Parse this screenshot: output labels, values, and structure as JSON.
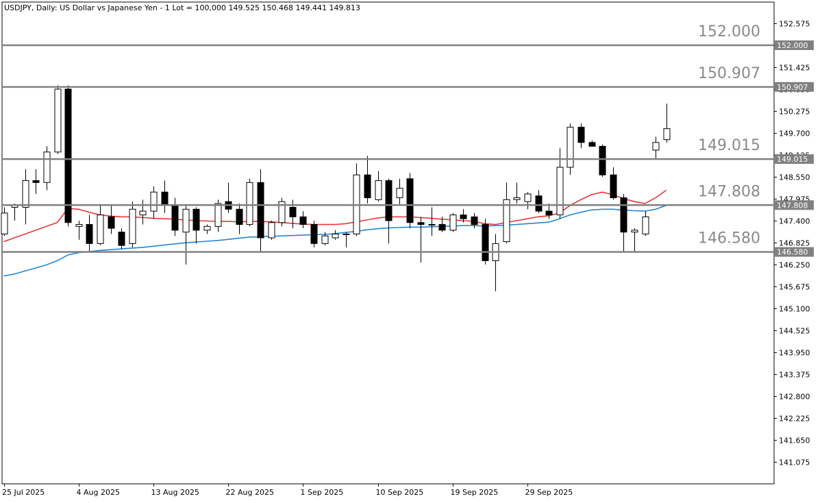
{
  "header": {
    "text": "USDJPY, Daily:  US Dollar vs Japanese Yen - 1 Lot = 100,000  149.525 150.468 149.441 149.813"
  },
  "colors": {
    "background": "#ffffff",
    "axis": "#000000",
    "candle": "#000000",
    "bull_fill": "#ffffff",
    "bear_fill": "#000000",
    "level_line": "#808080",
    "level_text": "#8a8a8a",
    "ma_fast": "#e8363a",
    "ma_slow": "#1e88d6"
  },
  "chart_data": {
    "type": "candlestick",
    "symbol": "USDJPY",
    "timeframe": "Daily",
    "ylim": [
      140.6,
      153.0
    ],
    "y_ticks": [
      "152.575",
      "152.000",
      "151.425",
      "150.850",
      "150.275",
      "149.700",
      "149.125",
      "148.550",
      "147.975",
      "147.400",
      "146.825",
      "146.250",
      "145.675",
      "145.100",
      "144.525",
      "143.950",
      "143.375",
      "142.800",
      "142.225",
      "141.650",
      "141.075"
    ],
    "x_labels": [
      {
        "index": 0,
        "label": "25 Jul 2025"
      },
      {
        "index": 7,
        "label": "4 Aug 2025"
      },
      {
        "index": 14,
        "label": "13 Aug 2025"
      },
      {
        "index": 21,
        "label": "22 Aug 2025"
      },
      {
        "index": 28,
        "label": "1 Sep 2025"
      },
      {
        "index": 35,
        "label": "10 Sep 2025"
      },
      {
        "index": 42,
        "label": "19 Sep 2025"
      },
      {
        "index": 49,
        "label": "29 Sep 2025"
      }
    ],
    "levels": [
      {
        "value": 152.0,
        "label": "152.000"
      },
      {
        "value": 150.907,
        "label": "150.907"
      },
      {
        "value": 149.015,
        "label": "149.015"
      },
      {
        "value": 147.808,
        "label": "147.808"
      },
      {
        "value": 146.58,
        "label": "146.580"
      }
    ],
    "candles": [
      {
        "o": 147.05,
        "h": 147.75,
        "l": 147.0,
        "c": 147.6
      },
      {
        "o": 147.75,
        "h": 147.85,
        "l": 147.4,
        "c": 147.8
      },
      {
        "o": 147.75,
        "h": 148.75,
        "l": 147.3,
        "c": 148.45
      },
      {
        "o": 148.45,
        "h": 148.75,
        "l": 148.1,
        "c": 148.4
      },
      {
        "o": 148.4,
        "h": 149.35,
        "l": 148.2,
        "c": 149.2
      },
      {
        "o": 149.2,
        "h": 150.95,
        "l": 149.15,
        "c": 150.85
      },
      {
        "o": 150.85,
        "h": 150.95,
        "l": 147.25,
        "c": 147.35
      },
      {
        "o": 147.25,
        "h": 147.4,
        "l": 146.9,
        "c": 147.3
      },
      {
        "o": 147.3,
        "h": 147.55,
        "l": 146.6,
        "c": 146.8
      },
      {
        "o": 146.8,
        "h": 147.8,
        "l": 146.75,
        "c": 147.55
      },
      {
        "o": 147.5,
        "h": 147.8,
        "l": 147.05,
        "c": 147.2
      },
      {
        "o": 147.1,
        "h": 147.2,
        "l": 146.65,
        "c": 146.75
      },
      {
        "o": 146.8,
        "h": 147.9,
        "l": 146.7,
        "c": 147.7
      },
      {
        "o": 147.55,
        "h": 147.95,
        "l": 147.3,
        "c": 147.65
      },
      {
        "o": 147.65,
        "h": 148.3,
        "l": 147.45,
        "c": 148.15
      },
      {
        "o": 148.15,
        "h": 148.45,
        "l": 147.6,
        "c": 147.8
      },
      {
        "o": 147.8,
        "h": 148.0,
        "l": 147.0,
        "c": 147.15
      },
      {
        "o": 147.1,
        "h": 147.8,
        "l": 146.25,
        "c": 147.7
      },
      {
        "o": 147.7,
        "h": 147.75,
        "l": 146.8,
        "c": 147.15
      },
      {
        "o": 147.15,
        "h": 147.3,
        "l": 147.05,
        "c": 147.25
      },
      {
        "o": 147.25,
        "h": 147.95,
        "l": 147.1,
        "c": 147.85
      },
      {
        "o": 147.9,
        "h": 148.4,
        "l": 147.6,
        "c": 147.7
      },
      {
        "o": 147.7,
        "h": 147.85,
        "l": 147.05,
        "c": 147.3
      },
      {
        "o": 147.3,
        "h": 148.5,
        "l": 147.25,
        "c": 148.4
      },
      {
        "o": 148.4,
        "h": 148.75,
        "l": 146.6,
        "c": 146.95
      },
      {
        "o": 146.95,
        "h": 147.4,
        "l": 146.9,
        "c": 147.35
      },
      {
        "o": 147.35,
        "h": 148.0,
        "l": 147.25,
        "c": 147.9
      },
      {
        "o": 147.75,
        "h": 147.95,
        "l": 147.2,
        "c": 147.5
      },
      {
        "o": 147.5,
        "h": 147.65,
        "l": 147.2,
        "c": 147.3
      },
      {
        "o": 147.3,
        "h": 147.4,
        "l": 146.7,
        "c": 146.8
      },
      {
        "o": 146.8,
        "h": 147.1,
        "l": 146.75,
        "c": 147.0
      },
      {
        "o": 146.95,
        "h": 147.15,
        "l": 146.9,
        "c": 147.05
      },
      {
        "o": 147.05,
        "h": 147.1,
        "l": 146.7,
        "c": 147.05
      },
      {
        "o": 147.05,
        "h": 148.9,
        "l": 147.0,
        "c": 148.6
      },
      {
        "o": 148.6,
        "h": 149.1,
        "l": 147.85,
        "c": 148.0
      },
      {
        "o": 147.95,
        "h": 148.7,
        "l": 147.9,
        "c": 148.45
      },
      {
        "o": 148.45,
        "h": 148.5,
        "l": 146.8,
        "c": 147.4
      },
      {
        "o": 148.0,
        "h": 148.5,
        "l": 147.8,
        "c": 148.25
      },
      {
        "o": 148.5,
        "h": 148.65,
        "l": 147.2,
        "c": 147.35
      },
      {
        "o": 147.35,
        "h": 147.5,
        "l": 146.3,
        "c": 147.3
      },
      {
        "o": 147.3,
        "h": 147.75,
        "l": 147.0,
        "c": 147.3
      },
      {
        "o": 147.3,
        "h": 147.5,
        "l": 147.1,
        "c": 147.15
      },
      {
        "o": 147.15,
        "h": 147.6,
        "l": 147.1,
        "c": 147.55
      },
      {
        "o": 147.55,
        "h": 147.7,
        "l": 147.35,
        "c": 147.45
      },
      {
        "o": 147.5,
        "h": 147.6,
        "l": 147.2,
        "c": 147.3
      },
      {
        "o": 147.3,
        "h": 147.45,
        "l": 146.25,
        "c": 146.35
      },
      {
        "o": 146.35,
        "h": 147.05,
        "l": 145.55,
        "c": 146.8
      },
      {
        "o": 146.85,
        "h": 148.4,
        "l": 146.8,
        "c": 147.95
      },
      {
        "o": 147.95,
        "h": 148.4,
        "l": 147.85,
        "c": 148.0
      },
      {
        "o": 147.9,
        "h": 148.15,
        "l": 147.7,
        "c": 148.1
      },
      {
        "o": 148.05,
        "h": 148.2,
        "l": 147.6,
        "c": 147.65
      },
      {
        "o": 147.65,
        "h": 147.85,
        "l": 147.45,
        "c": 147.55
      },
      {
        "o": 147.55,
        "h": 149.3,
        "l": 147.45,
        "c": 148.8
      },
      {
        "o": 148.8,
        "h": 149.95,
        "l": 148.6,
        "c": 149.85
      },
      {
        "o": 149.85,
        "h": 149.95,
        "l": 149.3,
        "c": 149.45
      },
      {
        "o": 149.45,
        "h": 149.5,
        "l": 149.35,
        "c": 149.35
      },
      {
        "o": 149.35,
        "h": 149.4,
        "l": 148.55,
        "c": 148.6
      },
      {
        "o": 148.6,
        "h": 148.8,
        "l": 147.95,
        "c": 148.0
      },
      {
        "o": 148.0,
        "h": 148.1,
        "l": 146.6,
        "c": 147.1
      },
      {
        "o": 147.1,
        "h": 147.2,
        "l": 146.6,
        "c": 147.15
      },
      {
        "o": 147.05,
        "h": 147.65,
        "l": 147.0,
        "c": 147.5
      },
      {
        "o": 149.25,
        "h": 149.6,
        "l": 149.0,
        "c": 149.45
      },
      {
        "o": 149.525,
        "h": 150.468,
        "l": 149.441,
        "c": 149.813
      }
    ],
    "ma_fast": [
      146.85,
      146.95,
      147.05,
      147.15,
      147.25,
      147.35,
      147.72,
      147.7,
      147.62,
      147.55,
      147.52,
      147.5,
      147.5,
      147.48,
      147.46,
      147.45,
      147.44,
      147.42,
      147.4,
      147.39,
      147.38,
      147.38,
      147.37,
      147.38,
      147.38,
      147.37,
      147.35,
      147.33,
      147.31,
      147.3,
      147.3,
      147.3,
      147.32,
      147.37,
      147.42,
      147.47,
      147.5,
      147.5,
      147.5,
      147.48,
      147.46,
      147.44,
      147.42,
      147.4,
      147.38,
      147.32,
      147.3,
      147.35,
      147.4,
      147.45,
      147.5,
      147.53,
      147.6,
      147.8,
      147.95,
      148.08,
      148.15,
      148.08,
      147.98,
      147.9,
      147.85,
      148.0,
      148.2
    ],
    "ma_slow": [
      145.95,
      146.0,
      146.08,
      146.16,
      146.24,
      146.35,
      146.5,
      146.56,
      146.59,
      146.62,
      146.64,
      146.66,
      146.68,
      146.7,
      146.73,
      146.76,
      146.79,
      146.82,
      146.84,
      146.86,
      146.88,
      146.91,
      146.94,
      146.97,
      146.98,
      146.99,
      147.0,
      147.01,
      147.02,
      147.03,
      147.04,
      147.06,
      147.09,
      147.12,
      147.16,
      147.19,
      147.21,
      147.22,
      147.23,
      147.23,
      147.24,
      147.25,
      147.26,
      147.27,
      147.27,
      147.26,
      147.27,
      147.28,
      147.3,
      147.32,
      147.34,
      147.36,
      147.45,
      147.55,
      147.62,
      147.68,
      147.7,
      147.7,
      147.68,
      147.66,
      147.65,
      147.7,
      147.8
    ]
  }
}
